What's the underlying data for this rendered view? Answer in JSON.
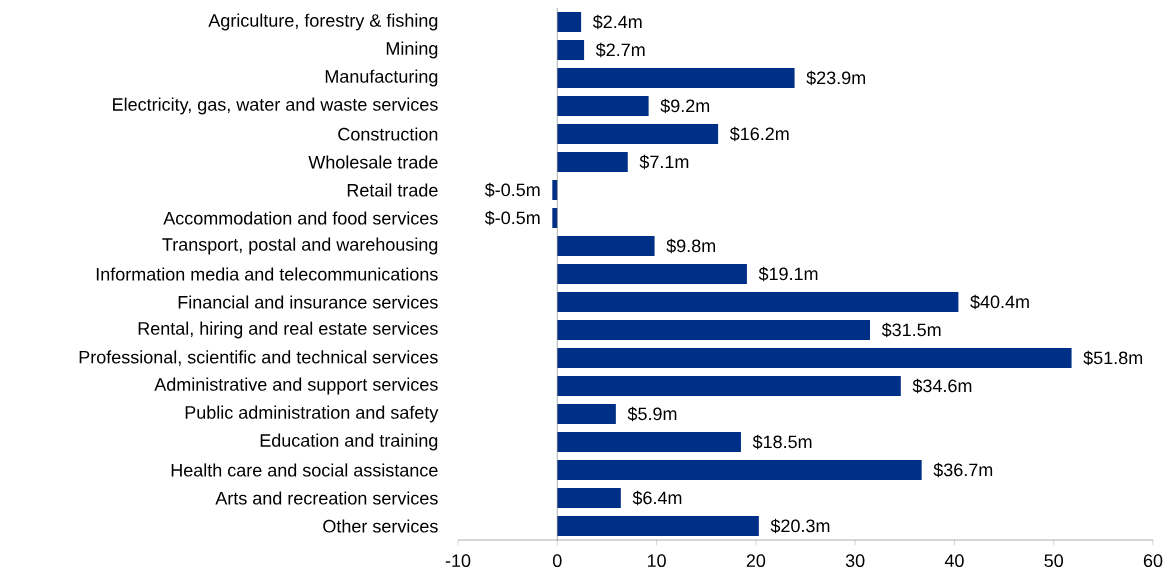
{
  "chart_data": {
    "type": "bar",
    "orientation": "horizontal",
    "categories": [
      "Agriculture, forestry & fishing",
      "Mining",
      "Manufacturing",
      "Electricity, gas, water and waste services",
      "Construction",
      "Wholesale trade",
      "Retail trade",
      "Accommodation and food services",
      "Transport, postal and warehousing",
      "Information media and telecommunications",
      "Financial and insurance services",
      "Rental, hiring and real estate services",
      "Professional, scientific and technical services",
      "Administrative and support services",
      "Public administration and safety",
      "Education and training",
      "Health care and social assistance",
      "Arts and recreation services",
      "Other services"
    ],
    "values": [
      2.4,
      2.7,
      23.9,
      9.2,
      16.2,
      7.1,
      -0.5,
      -0.5,
      9.8,
      19.1,
      40.4,
      31.5,
      51.8,
      34.6,
      5.9,
      18.5,
      36.7,
      6.4,
      20.3
    ],
    "value_labels": [
      "$2.4m",
      "$2.7m",
      "$23.9m",
      "$9.2m",
      "$16.2m",
      "$7.1m",
      "$-0.5m",
      "$-0.5m",
      "$9.8m",
      "$19.1m",
      "$40.4m",
      "$31.5m",
      "$51.8m",
      "$34.6m",
      "$5.9m",
      "$18.5m",
      "$36.7m",
      "$6.4m",
      "$20.3m"
    ],
    "color": "#002f87",
    "xlim": [
      -10,
      60
    ],
    "xticks": [
      -10,
      0,
      10,
      20,
      30,
      40,
      50,
      60
    ]
  }
}
